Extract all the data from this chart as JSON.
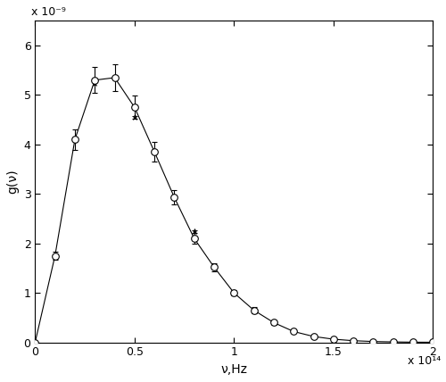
{
  "title": "",
  "xlabel": "ν,Hz",
  "ylabel": "g(ν)",
  "xlim": [
    0,
    200000000000000.0
  ],
  "ylim": [
    0,
    6.5e-09
  ],
  "background_color": "#ffffff",
  "line_color": "#000000",
  "nu": [
    0,
    10000000000000.0,
    20000000000000.0,
    30000000000000.0,
    40000000000000.0,
    50000000000000.0,
    60000000000000.0,
    70000000000000.0,
    80000000000000.0,
    90000000000000.0,
    100000000000000.0,
    110000000000000.0,
    120000000000000.0,
    130000000000000.0,
    140000000000000.0,
    150000000000000.0,
    160000000000000.0,
    170000000000000.0,
    180000000000000.0,
    190000000000000.0,
    200000000000000.0
  ],
  "g_exact": [
    0,
    1.75e-09,
    4.1e-09,
    5.3e-09,
    5.35e-09,
    4.75e-09,
    3.85e-09,
    2.93e-09,
    2.1e-09,
    1.52e-09,
    1e-09,
    6.5e-10,
    4e-10,
    2.2e-10,
    1.2e-10,
    6.5e-11,
    3.5e-11,
    1.8e-11,
    1e-11,
    5e-12,
    3e-12
  ],
  "g_sim": [
    0,
    1.75e-09,
    4.1e-09,
    5.25e-09,
    5.35e-09,
    4.55e-09,
    3.85e-09,
    2.93e-09,
    2.25e-09,
    1.52e-09,
    1e-09,
    6.5e-10,
    4e-10,
    2.2e-10,
    1.2e-10,
    6.5e-11,
    3.5e-11,
    1.8e-11,
    1e-11,
    5e-12,
    3e-12
  ],
  "err_pct_low": 0.05,
  "err_pct_high": 0.1,
  "nu_threshold": 100000000000000.0,
  "xticks": [
    0,
    50000000000000.0,
    100000000000000.0,
    150000000000000.0,
    200000000000000.0
  ],
  "xtick_labels": [
    "0",
    "0.5",
    "1",
    "1.5",
    "2"
  ],
  "yticks": [
    0,
    1e-09,
    2e-09,
    3e-09,
    4e-09,
    5e-09,
    6e-09
  ],
  "ytick_labels": [
    "0",
    "1",
    "2",
    "3",
    "4",
    "5",
    "6"
  ]
}
